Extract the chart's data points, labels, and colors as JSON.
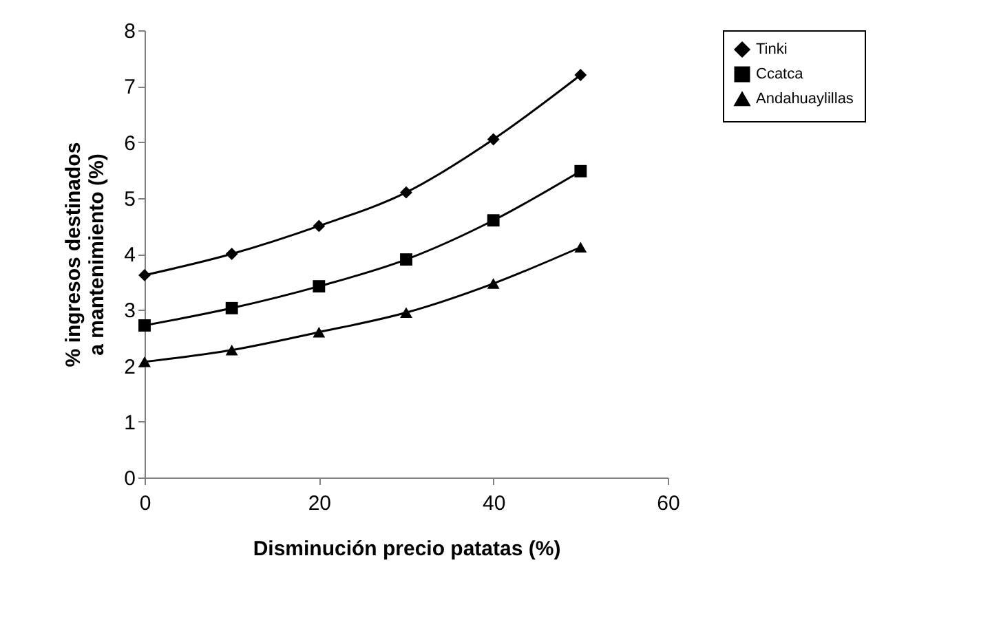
{
  "chart_data": {
    "type": "line",
    "xlabel": "Disminución precio patatas (%)",
    "ylabel": "% ingresos destinados a mantenimiento (%)",
    "x": [
      0,
      10,
      20,
      30,
      40,
      50
    ],
    "xlim": [
      0,
      60
    ],
    "xticks": [
      0,
      20,
      40,
      60
    ],
    "ylim": [
      0,
      8
    ],
    "yticks": [
      0,
      1,
      2,
      3,
      4,
      5,
      6,
      7,
      8
    ],
    "grid": false,
    "legend": "right",
    "line_style": "solid",
    "series": [
      {
        "name": "Tinki",
        "color": "#000000",
        "marker": "diamond",
        "values": [
          3.62,
          4.0,
          4.5,
          5.1,
          6.05,
          7.2
        ]
      },
      {
        "name": "Ccatca",
        "color": "#000000",
        "marker": "square",
        "values": [
          2.72,
          3.03,
          3.42,
          3.9,
          4.6,
          5.48
        ]
      },
      {
        "name": "Andahuaylillas",
        "color": "#000000",
        "marker": "triangle",
        "values": [
          2.07,
          2.28,
          2.6,
          2.95,
          3.47,
          4.12
        ]
      }
    ]
  }
}
